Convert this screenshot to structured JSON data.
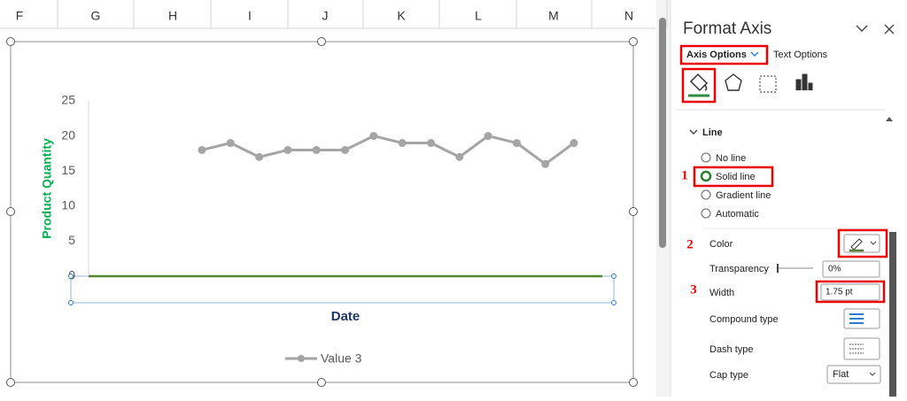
{
  "columns": [
    "F",
    "G",
    "H",
    "I",
    "J",
    "K",
    "L",
    "M",
    "N"
  ],
  "chart_data": {
    "type": "line",
    "x_label": "Date",
    "y_label": "Product Quantity",
    "categories": [
      null,
      null,
      null,
      null,
      null,
      null,
      null,
      null,
      null,
      null,
      null,
      null,
      null,
      null
    ],
    "series": [
      {
        "name": "Value 3",
        "color": "#a5a5a5",
        "values": [
          18,
          19,
          17,
          18,
          18,
          18,
          20,
          19,
          19,
          17,
          20,
          19,
          16,
          19
        ]
      }
    ],
    "ylim": [
      0,
      25
    ],
    "yticks": [
      0,
      5,
      10,
      15,
      20,
      25
    ],
    "grid": false,
    "legend": "bottom",
    "x_axis_color": "#548235"
  },
  "pane": {
    "title": "Format Axis",
    "tabs": [
      "Axis Options",
      "Text Options"
    ],
    "section": "Line",
    "line_options": [
      "No line",
      "Solid line",
      "Gradient line",
      "Automatic"
    ],
    "selected_line_option": 1,
    "steps": [
      "1",
      "2",
      "3"
    ],
    "color_label": "Color",
    "transparency_label": "Transparency",
    "transparency": "0%",
    "width_label": "Width",
    "width": "1.75 pt",
    "compound_label": "Compound type",
    "dash_label": "Dash type",
    "cap_label": "Cap type",
    "cap": "Flat"
  }
}
